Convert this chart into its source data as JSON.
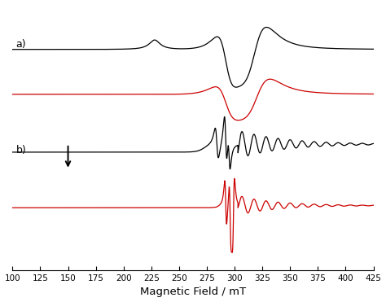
{
  "xlim": [
    100,
    425
  ],
  "xticks": [
    100,
    125,
    150,
    175,
    200,
    225,
    250,
    275,
    300,
    325,
    350,
    375,
    400,
    425
  ],
  "xlabel": "Magnetic Field / mT",
  "background_color": "#ffffff",
  "label_a": "a)",
  "label_b": "b)"
}
